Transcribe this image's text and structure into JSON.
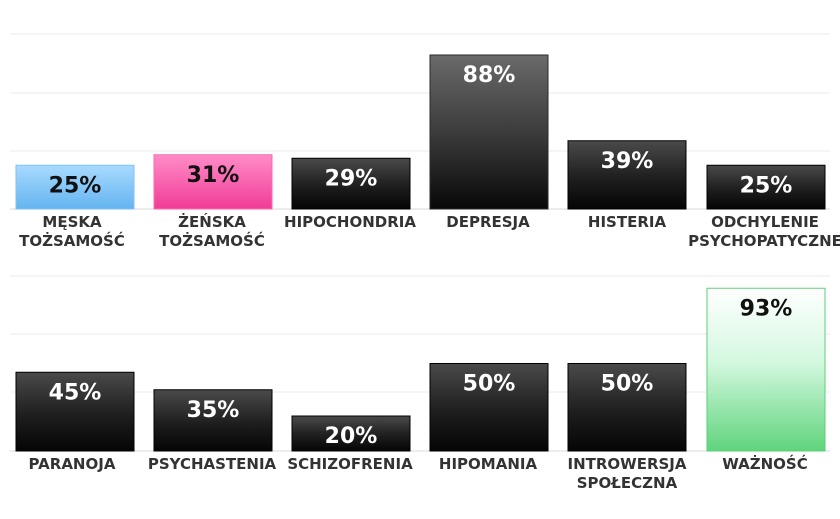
{
  "chart_data": [
    {
      "type": "bar",
      "categories": [
        [
          "MĘSKA",
          "TOŻSAMOŚĆ"
        ],
        [
          "ŻEŃSKA",
          "TOŻSAMOŚĆ"
        ],
        [
          "HIPOCHONDRIA"
        ],
        [
          "DEPRESJA"
        ],
        [
          "HISTERIA"
        ],
        [
          "ODCHYLENIE",
          "PSYCHOPATYCZNE"
        ]
      ],
      "values": [
        25,
        31,
        29,
        88,
        39,
        25
      ],
      "value_labels": [
        "25%",
        "31%",
        "29%",
        "88%",
        "39%",
        "25%"
      ],
      "ylim": [
        0,
        100
      ],
      "grid": true,
      "colors": [
        "#6ab8f2",
        "#f2509c",
        "#1a1a1a",
        "#3a3a3a",
        "#1a1a1a",
        "#1a1a1a"
      ]
    },
    {
      "type": "bar",
      "categories": [
        [
          "PARANOJA"
        ],
        [
          "PSYCHASTENIA"
        ],
        [
          "SCHIZOFRENIA"
        ],
        [
          "HIPOMANIA"
        ],
        [
          "INTROWERSJA",
          "SPOŁECZNA"
        ],
        [
          "WAŻNOŚĆ"
        ]
      ],
      "values": [
        45,
        35,
        20,
        50,
        50,
        93
      ],
      "value_labels": [
        "45%",
        "35%",
        "20%",
        "50%",
        "50%",
        "93%"
      ],
      "ylim": [
        0,
        100
      ],
      "grid": true,
      "colors": [
        "#1a1a1a",
        "#1a1a1a",
        "#1a1a1a",
        "#1a1a1a",
        "#1a1a1a",
        "#70d888"
      ]
    }
  ]
}
